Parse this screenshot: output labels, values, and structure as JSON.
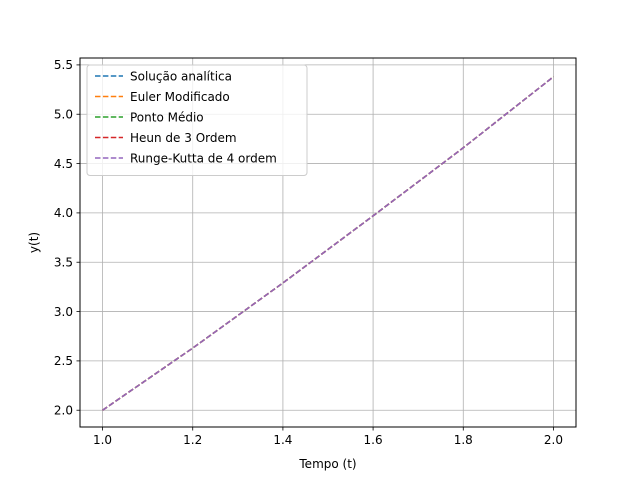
{
  "chart_data": {
    "type": "line",
    "title": "",
    "xlabel": "Tempo (t)",
    "ylabel": "y(t)",
    "xlim": [
      0.95,
      2.05
    ],
    "ylim": [
      1.83,
      5.57
    ],
    "xticks": [
      1.0,
      1.2,
      1.4,
      1.6,
      1.8,
      2.0
    ],
    "xtick_labels": [
      "1.0",
      "1.2",
      "1.4",
      "1.6",
      "1.8",
      "2.0"
    ],
    "yticks": [
      2.0,
      2.5,
      3.0,
      3.5,
      4.0,
      4.5,
      5.0,
      5.5
    ],
    "ytick_labels": [
      "2.0",
      "2.5",
      "3.0",
      "3.5",
      "4.0",
      "4.5",
      "5.0",
      "5.5"
    ],
    "grid": true,
    "legend_position": "top-left",
    "line_style": "dashed",
    "x": [
      1.0,
      1.2,
      1.4,
      1.6,
      1.8,
      2.0
    ],
    "series": [
      {
        "name": "Solução analítica",
        "color": "#1f77b4",
        "values": [
          2.0,
          2.63,
          3.29,
          3.97,
          4.66,
          5.38
        ]
      },
      {
        "name": "Euler Modificado",
        "color": "#ff7f0e",
        "values": [
          2.0,
          2.63,
          3.29,
          3.97,
          4.66,
          5.38
        ]
      },
      {
        "name": "Ponto Médio",
        "color": "#2ca02c",
        "values": [
          2.0,
          2.63,
          3.29,
          3.97,
          4.66,
          5.38
        ]
      },
      {
        "name": "Heun de 3 Ordem",
        "color": "#d62728",
        "values": [
          2.0,
          2.63,
          3.29,
          3.97,
          4.66,
          5.38
        ]
      },
      {
        "name": "Runge-Kutta de 4 ordem",
        "color": "#9467bd",
        "values": [
          2.0,
          2.63,
          3.29,
          3.97,
          4.66,
          5.38
        ]
      }
    ]
  }
}
